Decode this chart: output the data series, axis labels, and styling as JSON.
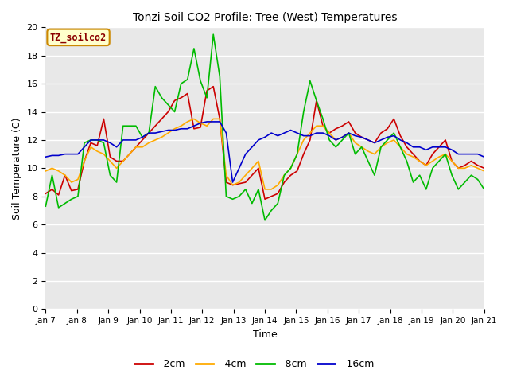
{
  "title": "Tonzi Soil CO2 Profile: Tree (West) Temperatures",
  "xlabel": "Time",
  "ylabel": "Soil Temperature (C)",
  "ylim": [
    0,
    20
  ],
  "xlim": [
    0,
    14
  ],
  "xtick_labels": [
    "Jan 7",
    "Jan 8",
    "Jan 9",
    "Jan 10",
    "Jan 11",
    "Jan 12",
    "Jan 13",
    "Jan 14",
    "Jan 15",
    "Jan 16",
    "Jan 17",
    "Jan 18",
    "Jan 19",
    "Jan 20",
    "Jan 21"
  ],
  "legend_label": "TZ_soilco2",
  "series_labels": [
    "-2cm",
    "-4cm",
    "-8cm",
    "-16cm"
  ],
  "series_colors": [
    "#cc0000",
    "#ffaa00",
    "#00bb00",
    "#0000cc"
  ],
  "fig_bg_color": "#ffffff",
  "plot_bg_color": "#e8e8e8",
  "cm2": [
    8.2,
    8.5,
    8.1,
    9.5,
    8.4,
    8.5,
    10.5,
    11.8,
    11.6,
    13.5,
    10.8,
    10.5,
    10.5,
    11.0,
    11.5,
    12.0,
    12.5,
    13.0,
    13.5,
    14.0,
    14.8,
    15.0,
    15.3,
    12.8,
    12.9,
    15.5,
    15.8,
    13.5,
    9.0,
    8.8,
    8.9,
    9.0,
    9.5,
    10.0,
    7.8,
    8.0,
    8.2,
    9.0,
    9.5,
    9.8,
    11.0,
    12.0,
    14.8,
    13.0,
    12.5,
    12.8,
    13.0,
    13.3,
    12.5,
    12.2,
    12.0,
    11.8,
    12.5,
    12.8,
    13.5,
    12.3,
    11.5,
    11.0,
    10.5,
    10.2,
    11.0,
    11.5,
    12.0,
    10.5,
    10.0,
    10.2,
    10.5,
    10.2,
    10.0
  ],
  "cm4": [
    9.8,
    10.0,
    9.8,
    9.5,
    9.0,
    9.2,
    10.5,
    11.5,
    11.2,
    11.0,
    10.5,
    10.0,
    10.5,
    11.0,
    11.5,
    11.5,
    11.8,
    12.0,
    12.2,
    12.5,
    12.8,
    13.0,
    13.3,
    13.5,
    13.2,
    13.0,
    13.5,
    13.5,
    9.5,
    8.8,
    9.0,
    9.5,
    10.0,
    10.5,
    8.5,
    8.5,
    8.8,
    9.5,
    10.0,
    11.0,
    12.0,
    12.5,
    13.0,
    13.0,
    12.5,
    12.0,
    12.2,
    12.5,
    11.8,
    11.5,
    11.2,
    11.0,
    11.5,
    11.8,
    12.0,
    11.5,
    11.0,
    10.8,
    10.5,
    10.2,
    10.5,
    10.8,
    11.0,
    10.5,
    10.0,
    10.0,
    10.2,
    10.0,
    9.8
  ],
  "cm8": [
    7.3,
    9.5,
    7.2,
    7.5,
    7.8,
    8.0,
    11.8,
    12.0,
    12.0,
    11.8,
    9.5,
    9.0,
    13.0,
    13.0,
    13.0,
    12.2,
    12.5,
    15.8,
    15.0,
    14.5,
    14.0,
    16.0,
    16.3,
    18.5,
    16.2,
    15.0,
    19.5,
    16.5,
    8.0,
    7.8,
    8.0,
    8.5,
    7.5,
    8.5,
    6.3,
    7.0,
    7.5,
    9.5,
    10.0,
    11.0,
    14.0,
    16.2,
    14.8,
    13.5,
    12.0,
    11.5,
    12.0,
    12.5,
    11.0,
    11.5,
    10.5,
    9.5,
    11.5,
    12.0,
    12.5,
    11.5,
    10.5,
    9.0,
    9.5,
    8.5,
    10.0,
    10.5,
    11.0,
    9.5,
    8.5,
    9.0,
    9.5,
    9.2,
    8.5
  ],
  "cm16": [
    10.8,
    10.9,
    10.9,
    11.0,
    11.0,
    11.0,
    11.5,
    12.0,
    12.0,
    12.0,
    11.8,
    11.5,
    12.0,
    12.0,
    12.0,
    12.2,
    12.5,
    12.5,
    12.6,
    12.7,
    12.7,
    12.8,
    12.8,
    13.0,
    13.2,
    13.3,
    13.3,
    13.3,
    12.5,
    9.0,
    10.0,
    11.0,
    11.5,
    12.0,
    12.2,
    12.5,
    12.3,
    12.5,
    12.7,
    12.5,
    12.3,
    12.3,
    12.5,
    12.5,
    12.3,
    12.0,
    12.2,
    12.5,
    12.3,
    12.2,
    12.0,
    11.8,
    12.0,
    12.2,
    12.3,
    12.0,
    11.8,
    11.5,
    11.5,
    11.3,
    11.5,
    11.5,
    11.5,
    11.3,
    11.0,
    11.0,
    11.0,
    11.0,
    10.8
  ]
}
